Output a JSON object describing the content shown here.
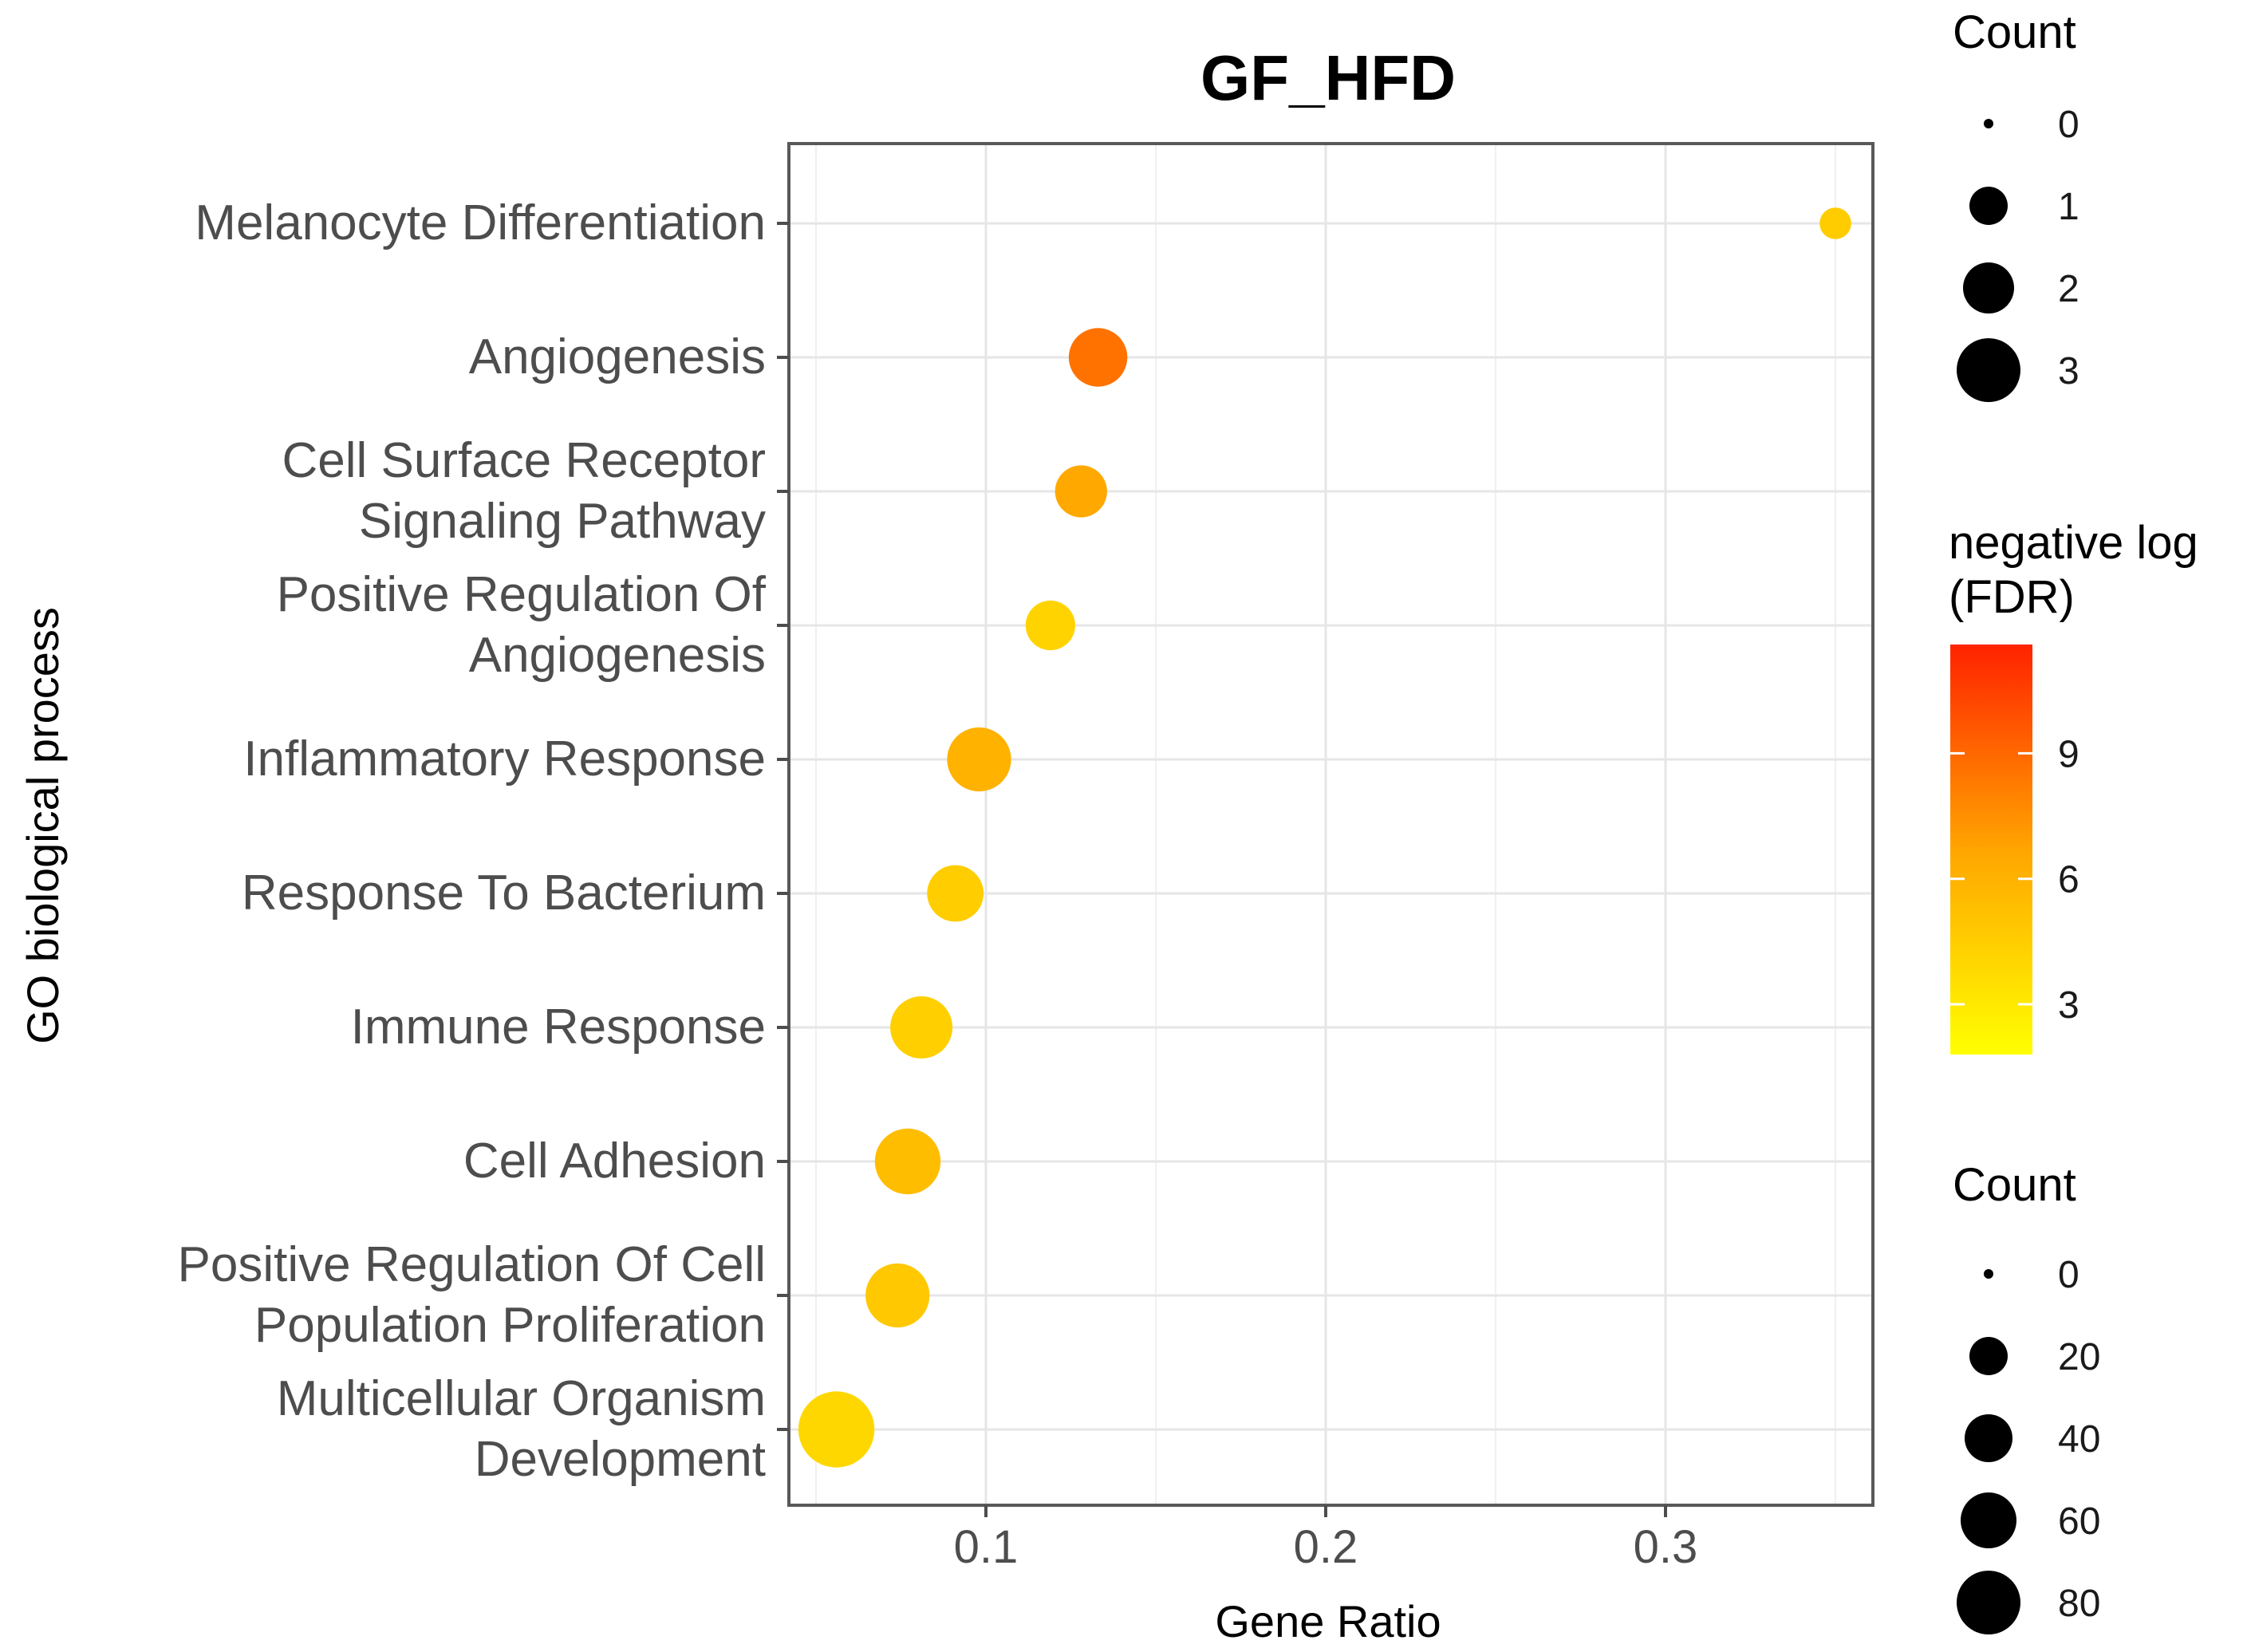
{
  "chart_data": {
    "type": "scatter",
    "title": "GF_HFD",
    "xlabel": "Gene Ratio",
    "ylabel": "GO biological process",
    "xlim": [
      0.05,
      0.37
    ],
    "xticks": [
      "0.1",
      "0.2",
      "0.3"
    ],
    "xtick_values": [
      0.1,
      0.2,
      0.3
    ],
    "grid": true,
    "points": [
      {
        "category": [
          "Melanocyte Differentiation"
        ],
        "gene_ratio": 0.35,
        "neg_log_fdr": 4.6,
        "count": 1
      },
      {
        "category": [
          "Angiogenesis"
        ],
        "gene_ratio": 0.133,
        "neg_log_fdr": 8.6,
        "count": 10
      },
      {
        "category": [
          "Cell Surface Receptor",
          "Signaling Pathway"
        ],
        "gene_ratio": 0.128,
        "neg_log_fdr": 6.5,
        "count": 7
      },
      {
        "category": [
          "Positive Regulation Of",
          "Angiogenesis"
        ],
        "gene_ratio": 0.119,
        "neg_log_fdr": 4.2,
        "count": 6
      },
      {
        "category": [
          "Inflammatory Response"
        ],
        "gene_ratio": 0.098,
        "neg_log_fdr": 6.0,
        "count": 13
      },
      {
        "category": [
          "Response To Bacterium"
        ],
        "gene_ratio": 0.091,
        "neg_log_fdr": 4.5,
        "count": 9
      },
      {
        "category": [
          "Immune Response"
        ],
        "gene_ratio": 0.081,
        "neg_log_fdr": 4.4,
        "count": 12
      },
      {
        "category": [
          "Cell Adhesion"
        ],
        "gene_ratio": 0.077,
        "neg_log_fdr": 5.4,
        "count": 14
      },
      {
        "category": [
          "Positive Regulation Of Cell",
          "Population Proliferation"
        ],
        "gene_ratio": 0.074,
        "neg_log_fdr": 4.8,
        "count": 13
      },
      {
        "category": [
          "Multicellular Organism",
          "Development"
        ],
        "gene_ratio": 0.056,
        "neg_log_fdr": 4.0,
        "count": 21
      }
    ],
    "legends": {
      "count_small": {
        "title": "Count",
        "labels": [
          "0",
          "1",
          "2",
          "3"
        ],
        "values": [
          0,
          1,
          2,
          3
        ]
      },
      "color": {
        "title_line1": "negative log",
        "title_line2": "(FDR)",
        "labels": [
          "9",
          "6",
          "3"
        ],
        "values": [
          9,
          6,
          3
        ],
        "range": [
          1.8,
          11.6
        ],
        "low_color": "#ffff00",
        "high_color": "#ff2200"
      },
      "count_large": {
        "title": "Count",
        "labels": [
          "0",
          "20",
          "40",
          "60",
          "80"
        ],
        "values": [
          0,
          20,
          40,
          60,
          80
        ]
      }
    }
  }
}
